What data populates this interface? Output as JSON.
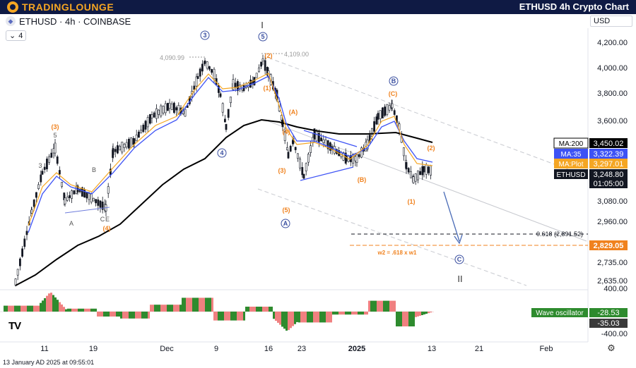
{
  "header": {
    "logo_text": "TRADINGLOUNGE",
    "title": "ETHUSD 4h Crypto Chart"
  },
  "symbol": {
    "icon": "eth-icon",
    "label": "ETHUSD · 4h · COINBASE",
    "layers_count": "4"
  },
  "currency": "USD",
  "footer": {
    "timestamp": "13 January AD 2025 at 09:55:01",
    "tv_logo": "TV"
  },
  "chart_data": {
    "type": "candlestick",
    "title": "ETHUSD 4h Crypto Chart",
    "price_axis": {
      "ticks": [
        "4,200.00",
        "4,000.00",
        "3,800.00",
        "3,600.00",
        "3,080.00",
        "2,960.00",
        "2,735.00",
        "2,635.00",
        "400.00",
        "-400.00"
      ]
    },
    "time_axis": {
      "ticks": [
        "11",
        "19",
        "Dec",
        "9",
        "16",
        "23",
        "2025",
        "13",
        "21",
        "Feb"
      ]
    },
    "indicator_labels": [
      {
        "name": "MA:200",
        "value": "3,450.02",
        "color": "#000000"
      },
      {
        "name": "MA:35",
        "value": "3,322.39",
        "color": "#3d52f5"
      },
      {
        "name": "MA:Plot",
        "value": "3,297.01",
        "color": "#f5a623"
      },
      {
        "name": "ETHUSD",
        "value": "3,248.80",
        "color": "#131722",
        "sub": "01:05:00"
      }
    ],
    "levels": [
      {
        "label": "0.618 (2,891.52)",
        "value": 2891.52,
        "style": "dashed",
        "color": "#131722"
      },
      {
        "label": "2,829.05",
        "value": 2829.05,
        "style": "dashed",
        "color": "#f0821e"
      }
    ],
    "annotations": {
      "high1": "4,090.99",
      "high2": "4,109.00",
      "projection": "w2 = .618 x w1"
    },
    "wave_labels_primary": [
      "③",
      "④",
      "⑤",
      "Ⓐ",
      "Ⓑ",
      "Ⓒ"
    ],
    "wave_labels_minor": [
      "(3)",
      "(4)",
      "(5)",
      "(1)",
      "(2)",
      "(A)",
      "(B)",
      "(C)",
      "5",
      "3",
      "A",
      "B",
      "C",
      "E"
    ],
    "wave_roman": [
      "I",
      "II"
    ],
    "oscillator": {
      "name": "Wave oscillator",
      "values": [
        "-28.53",
        "-35.03"
      ]
    }
  }
}
